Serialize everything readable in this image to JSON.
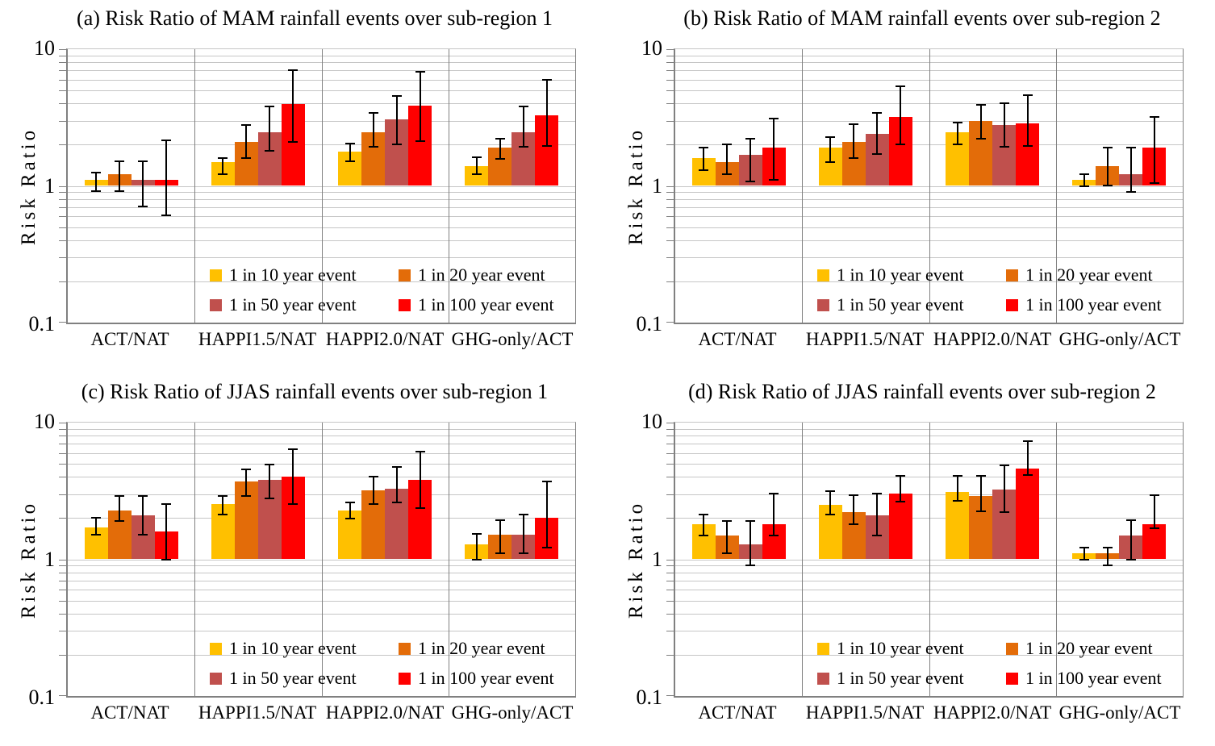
{
  "figure": {
    "ylabel": "Risk Ratio",
    "colors": {
      "series_10yr": "#FFC000",
      "series_20yr": "#E36C09",
      "series_50yr": "#C0504D",
      "series_100yr": "#FF0000",
      "gridline": "#C6C6C6",
      "axis": "#808080",
      "error_bar": "#000000"
    }
  },
  "chart_data": [
    {
      "type": "bar",
      "panel": "a",
      "title": "(a) Risk Ratio of MAM rainfall events over sub-region 1",
      "ylabel": "Risk Ratio",
      "yscale": "log",
      "ylim": [
        0.1,
        10
      ],
      "yticks": [
        "10",
        "1",
        "0.1"
      ],
      "grid": "on",
      "legend_position": "inside-bottom",
      "categories": [
        "ACT/NAT",
        "HAPPI1.5/NAT",
        "HAPPI2.0/NAT",
        "GHG-only/ACT"
      ],
      "series": [
        {
          "name": "1 in 10 year event",
          "color": "#FFC000",
          "values": [
            1.11,
            1.49,
            1.78,
            1.4
          ],
          "err_lo": [
            0.92,
            1.21,
            1.51,
            1.22
          ],
          "err_hi": [
            1.25,
            1.6,
            2.03,
            1.62
          ]
        },
        {
          "name": "1 in 20 year event",
          "color": "#E36C09",
          "values": [
            1.22,
            2.09,
            2.48,
            1.9
          ],
          "err_lo": [
            0.92,
            1.6,
            1.93,
            1.58
          ],
          "err_hi": [
            1.51,
            2.8,
            3.43,
            2.2
          ]
        },
        {
          "name": "1 in 50 year event",
          "color": "#C0504D",
          "values": [
            1.11,
            2.48,
            3.08,
            2.48
          ],
          "err_lo": [
            0.71,
            1.8,
            2.0,
            1.93
          ],
          "err_hi": [
            1.51,
            3.81,
            4.54,
            3.81
          ]
        },
        {
          "name": "1 in 100 year event",
          "color": "#FF0000",
          "values": [
            1.11,
            3.97,
            3.87,
            3.29
          ],
          "err_lo": [
            0.61,
            2.1,
            2.12,
            1.95
          ],
          "err_hi": [
            2.14,
            7.0,
            6.87,
            6.0
          ]
        }
      ]
    },
    {
      "type": "bar",
      "panel": "b",
      "title": "(b) Risk Ratio of MAM rainfall events over sub-region 2",
      "ylabel": "Risk Ratio",
      "yscale": "log",
      "ylim": [
        0.1,
        10
      ],
      "yticks": [
        "10",
        "1",
        "0.1"
      ],
      "grid": "on",
      "legend_position": "inside-bottom",
      "categories": [
        "ACT/NAT",
        "HAPPI1.5/NAT",
        "HAPPI2.0/NAT",
        "GHG-only/ACT"
      ],
      "series": [
        {
          "name": "1 in 10 year event",
          "color": "#FFC000",
          "values": [
            1.6,
            1.9,
            2.48,
            1.1
          ],
          "err_lo": [
            1.31,
            1.49,
            2.0,
            1.0
          ],
          "err_hi": [
            1.9,
            2.29,
            2.92,
            1.22
          ]
        },
        {
          "name": "1 in 20 year event",
          "color": "#E36C09",
          "values": [
            1.49,
            2.09,
            3.0,
            1.4
          ],
          "err_lo": [
            1.21,
            1.6,
            2.2,
            1.01
          ],
          "err_hi": [
            2.0,
            2.84,
            3.92,
            1.9
          ]
        },
        {
          "name": "1 in 50 year event",
          "color": "#C0504D",
          "values": [
            1.69,
            2.39,
            2.8,
            1.21
          ],
          "err_lo": [
            1.08,
            1.71,
            1.93,
            0.9
          ],
          "err_hi": [
            2.2,
            3.43,
            4.02,
            1.9
          ]
        },
        {
          "name": "1 in 100 year event",
          "color": "#FF0000",
          "values": [
            1.9,
            3.2,
            2.88,
            1.9
          ],
          "err_lo": [
            1.1,
            2.0,
            1.95,
            1.05
          ],
          "err_hi": [
            3.12,
            5.34,
            4.6,
            3.2
          ]
        }
      ]
    },
    {
      "type": "bar",
      "panel": "c",
      "title": "(c) Risk Ratio of JJAS rainfall events over sub-region 1",
      "ylabel": "Risk Ratio",
      "yscale": "log",
      "ylim": [
        0.1,
        10
      ],
      "yticks": [
        "10",
        "1",
        "0.1"
      ],
      "grid": "on",
      "legend_position": "inside-bottom",
      "categories": [
        "ACT/NAT",
        "HAPPI1.5/NAT",
        "HAPPI2.0/NAT",
        "GHG-only/ACT"
      ],
      "series": [
        {
          "name": "1 in 10 year event",
          "color": "#FFC000",
          "values": [
            1.71,
            2.52,
            2.29,
            1.29
          ],
          "err_lo": [
            1.51,
            2.12,
            1.98,
            1.0
          ],
          "err_hi": [
            2.0,
            2.92,
            2.62,
            1.53
          ]
        },
        {
          "name": "1 in 20 year event",
          "color": "#E36C09",
          "values": [
            2.29,
            3.72,
            3.2,
            1.51
          ],
          "err_lo": [
            1.9,
            2.92,
            2.55,
            1.1
          ],
          "err_hi": [
            2.92,
            4.54,
            4.02,
            1.93
          ]
        },
        {
          "name": "1 in 50 year event",
          "color": "#C0504D",
          "values": [
            2.09,
            3.81,
            3.29,
            1.51
          ],
          "err_lo": [
            1.51,
            2.8,
            2.62,
            1.1
          ],
          "err_hi": [
            2.92,
            4.92,
            4.73,
            2.12
          ]
        },
        {
          "name": "1 in 100 year event",
          "color": "#FF0000",
          "values": [
            1.6,
            4.02,
            3.81,
            2.0
          ],
          "err_lo": [
            1.0,
            2.52,
            2.36,
            1.21
          ],
          "err_hi": [
            2.52,
            6.35,
            6.1,
            3.72
          ]
        }
      ]
    },
    {
      "type": "bar",
      "panel": "d",
      "title": "(d) Risk Ratio of JJAS rainfall events over sub-region 2",
      "ylabel": "Risk Ratio",
      "yscale": "log",
      "ylim": [
        0.1,
        10
      ],
      "yticks": [
        "10",
        "1",
        "0.1"
      ],
      "grid": "on",
      "legend_position": "inside-bottom",
      "categories": [
        "ACT/NAT",
        "HAPPI1.5/NAT",
        "HAPPI2.0/NAT",
        "GHG-only/ACT"
      ],
      "series": [
        {
          "name": "1 in 10 year event",
          "color": "#FFC000",
          "values": [
            1.81,
            2.5,
            3.1,
            1.1
          ],
          "err_lo": [
            1.5,
            2.12,
            2.67,
            1.0
          ],
          "err_hi": [
            2.12,
            3.14,
            4.06,
            1.22
          ]
        },
        {
          "name": "1 in 20 year event",
          "color": "#E36C09",
          "values": [
            1.5,
            2.21,
            2.9,
            1.1
          ],
          "err_lo": [
            1.1,
            1.81,
            2.24,
            0.9
          ],
          "err_hi": [
            1.91,
            2.93,
            4.06,
            1.22
          ]
        },
        {
          "name": "1 in 50 year event",
          "color": "#C0504D",
          "values": [
            1.29,
            2.1,
            3.23,
            1.5
          ],
          "err_lo": [
            0.9,
            1.5,
            2.21,
            1.0
          ],
          "err_hi": [
            1.91,
            3.02,
            4.89,
            1.93
          ]
        },
        {
          "name": "1 in 100 year event",
          "color": "#FF0000",
          "values": [
            1.81,
            3.02,
            4.64,
            1.81
          ],
          "err_lo": [
            1.5,
            2.64,
            4.15,
            1.69
          ],
          "err_hi": [
            3.02,
            4.06,
            7.3,
            2.93
          ]
        }
      ]
    }
  ]
}
